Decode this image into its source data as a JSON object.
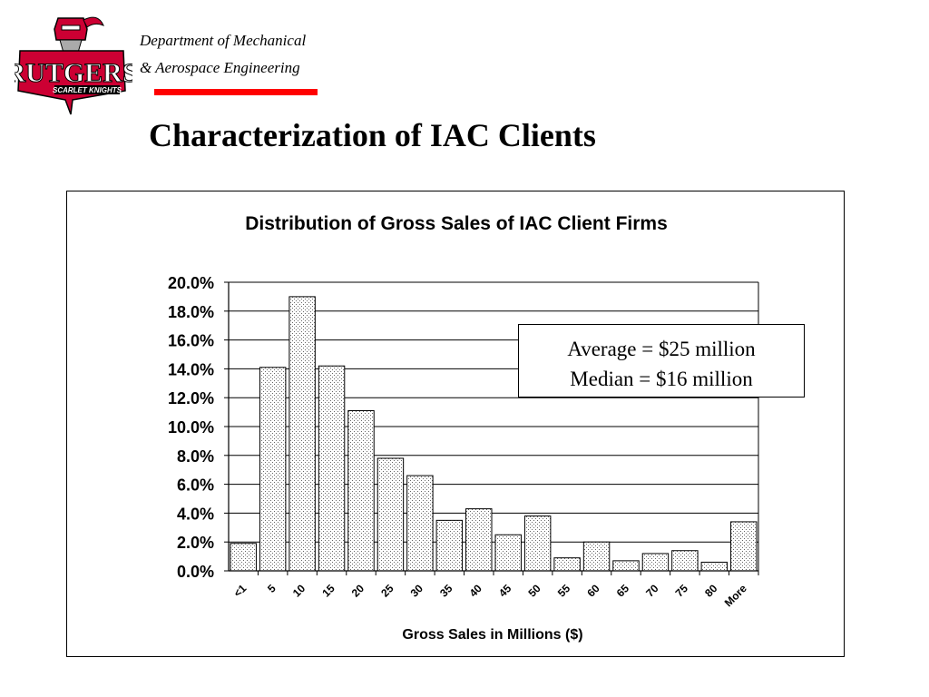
{
  "header": {
    "logo_text": "RUTGERS",
    "logo_subtext": "SCARLET KNIGHTS",
    "dept_line1": "Department of Mechanical",
    "dept_line2": "& Aerospace Engineering",
    "title": "Characterization of IAC Clients"
  },
  "colors": {
    "scarlet": "#cc0033",
    "accent_bar": "#ff0000",
    "bar_fill": "#ffffff",
    "bar_stipple": "#666666"
  },
  "annotation": {
    "line1": "Average = $25 million",
    "line2": "Median = $16 million"
  },
  "chart_data": {
    "type": "bar",
    "title": "Distribution of Gross Sales of IAC Client Firms",
    "xlabel": "Gross Sales in Millions ($)",
    "ylabel": "",
    "categories": [
      "<1",
      "5",
      "10",
      "15",
      "20",
      "25",
      "30",
      "35",
      "40",
      "45",
      "50",
      "55",
      "60",
      "65",
      "70",
      "75",
      "80",
      "More"
    ],
    "values": [
      1.9,
      14.1,
      19.0,
      14.2,
      11.1,
      7.8,
      6.6,
      3.5,
      4.3,
      2.5,
      3.8,
      0.9,
      2.0,
      0.7,
      1.2,
      1.4,
      0.6,
      3.4
    ],
    "value_format": "percent",
    "ylim": [
      0,
      20
    ],
    "yticks": [
      "0.0%",
      "2.0%",
      "4.0%",
      "6.0%",
      "8.0%",
      "10.0%",
      "12.0%",
      "14.0%",
      "16.0%",
      "18.0%",
      "20.0%"
    ],
    "grid": true,
    "legend": "none"
  }
}
